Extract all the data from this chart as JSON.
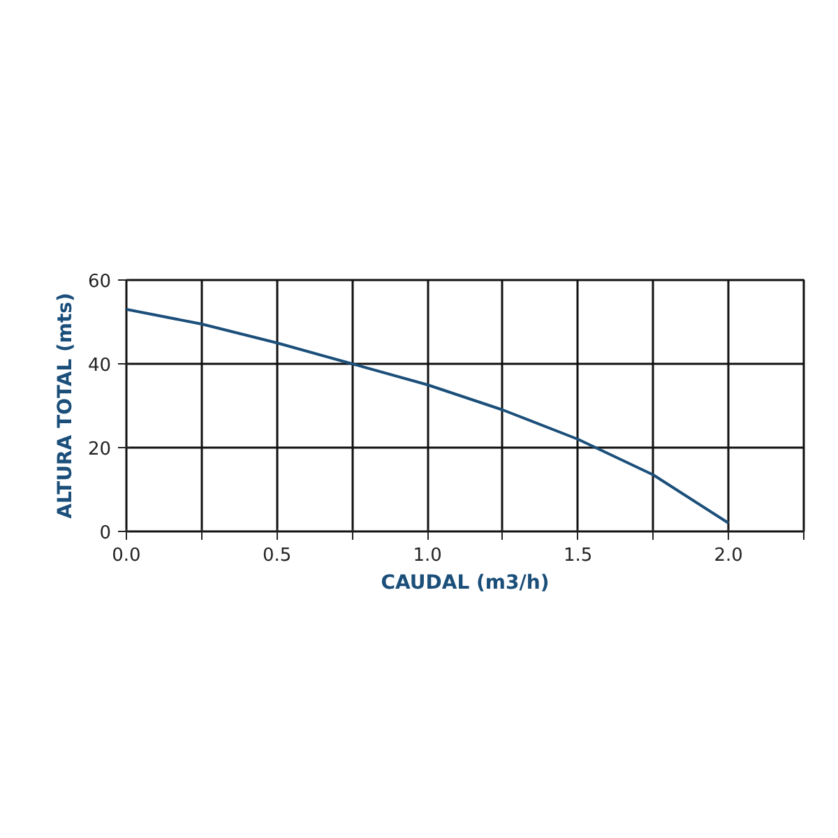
{
  "chart_data": {
    "type": "line",
    "xlabel": "CAUDAL (m3/h)",
    "ylabel": "ALTURA TOTAL (mts)",
    "x": [
      0,
      0.25,
      0.5,
      0.75,
      1.0,
      1.25,
      1.5,
      1.75,
      2.0
    ],
    "series": [
      {
        "color": "#1b4f7a",
        "values": [
          53,
          49.5,
          45,
          40,
          35,
          29,
          22,
          13.5,
          2
        ]
      }
    ],
    "xlim": [
      0,
      2.25
    ],
    "ylim": [
      0,
      60
    ],
    "xticks": [
      {
        "value": 0,
        "label": "0.0"
      },
      {
        "value": 0.25,
        "label": null
      },
      {
        "value": 0.5,
        "label": "0.5"
      },
      {
        "value": 0.75,
        "label": null
      },
      {
        "value": 1.0,
        "label": "1.0"
      },
      {
        "value": 1.25,
        "label": null
      },
      {
        "value": 1.5,
        "label": "1.5"
      },
      {
        "value": 1.75,
        "label": null
      },
      {
        "value": 2.0,
        "label": "2.0"
      },
      {
        "value": 2.25,
        "label": null
      }
    ],
    "yticks": [
      0,
      20,
      40,
      60
    ],
    "grid": true,
    "marker": "none",
    "line_style": "solid"
  }
}
